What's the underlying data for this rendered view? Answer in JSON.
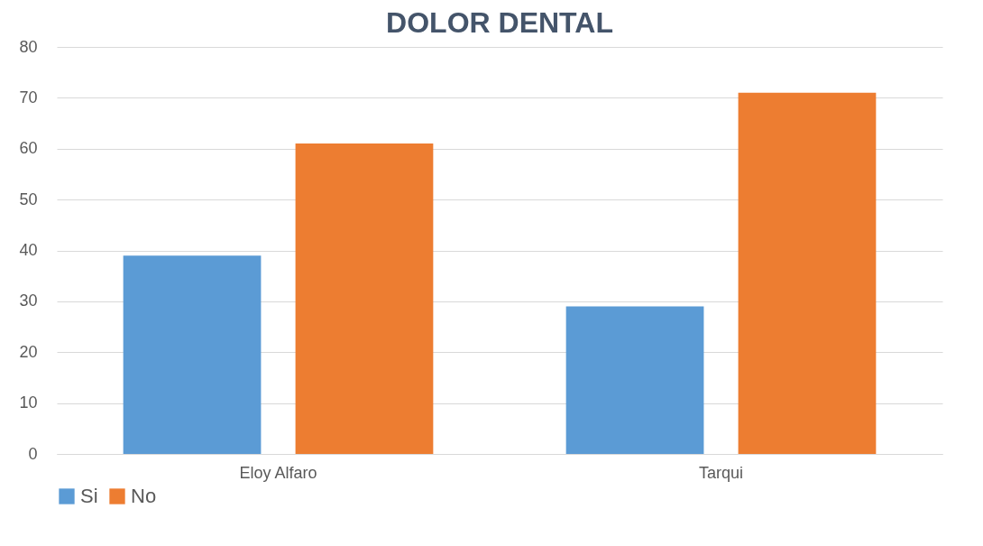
{
  "chart_data": {
    "type": "bar",
    "title": "DOLOR DENTAL",
    "categories": [
      "Eloy Alfaro",
      "Tarqui"
    ],
    "series": [
      {
        "name": "Si",
        "color": "#5b9bd5",
        "values": [
          39,
          29
        ]
      },
      {
        "name": "No",
        "color": "#ed7d31",
        "values": [
          61,
          71
        ]
      }
    ],
    "ylim": [
      0,
      80
    ],
    "yticks": [
      0,
      10,
      20,
      30,
      40,
      50,
      60,
      70,
      80
    ],
    "grid": "y",
    "legend": "bottom"
  }
}
